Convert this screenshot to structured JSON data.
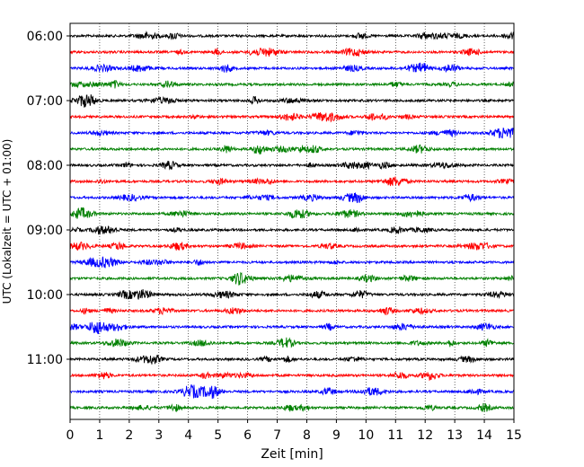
{
  "chart_data": {
    "type": "line",
    "title": "",
    "xlabel": "Zeit  [min]",
    "ylabel": "UTC (Lokalzeit = UTC + 01:00)",
    "xlim": [
      0,
      15
    ],
    "x_ticks": [
      "0",
      "1",
      "2",
      "3",
      "4",
      "5",
      "6",
      "7",
      "8",
      "9",
      "10",
      "11",
      "12",
      "13",
      "14",
      "15"
    ],
    "y_ticks": [
      "06:00",
      "07:00",
      "08:00",
      "09:00",
      "10:00",
      "11:00"
    ],
    "grid": {
      "x": true,
      "y": false
    },
    "legend": "none",
    "trace_interval_minutes": 15,
    "start_time": "06:00",
    "trace_count": 24,
    "series_colors": [
      "#000000",
      "#ff0000",
      "#0000ff",
      "#008000"
    ]
  }
}
